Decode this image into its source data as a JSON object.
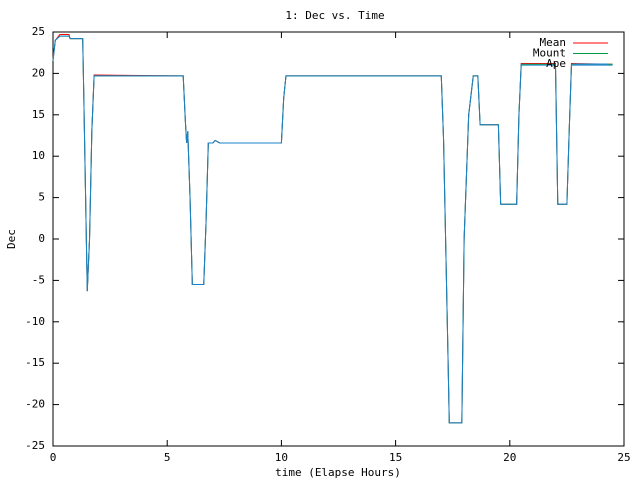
{
  "chart_data": {
    "type": "line",
    "title": "1: Dec vs. Time",
    "x_label": "time (Elapse Hours)",
    "y_label": "Dec",
    "x": [
      0,
      0.1,
      0.3,
      0.7,
      0.75,
      1.3,
      1.35,
      1.5,
      1.6,
      1.7,
      1.8,
      5.7,
      5.8,
      5.85,
      5.9,
      6.0,
      6.1,
      6.6,
      6.7,
      6.8,
      7.0,
      7.1,
      7.3,
      10.0,
      10.1,
      10.2,
      17.0,
      17.1,
      17.3,
      17.35,
      17.9,
      18.0,
      18.2,
      18.4,
      18.6,
      18.7,
      19.5,
      19.6,
      20.3,
      20.4,
      20.5,
      22.0,
      22.1,
      22.5,
      22.6,
      22.7,
      24.5
    ],
    "series": [
      {
        "name": "Mean",
        "color": "#ff0000",
        "values": [
          21.6,
          24.0,
          24.7,
          24.7,
          24.2,
          24.2,
          17,
          -6.3,
          0,
          13,
          19.8,
          19.7,
          14,
          11.6,
          13,
          5,
          -5.5,
          -5.5,
          2,
          11.6,
          11.6,
          11.9,
          11.6,
          11.6,
          17,
          19.7,
          19.7,
          12,
          -15,
          -22.2,
          -22.2,
          0,
          15,
          19.7,
          19.7,
          13.8,
          13.8,
          4.2,
          4.2,
          15,
          21.2,
          21.2,
          4.2,
          4.2,
          13,
          21.2,
          21.1
        ]
      },
      {
        "name": "Mount",
        "color": "#009e4a",
        "values": [
          21.6,
          24.0,
          24.5,
          24.5,
          24.2,
          24.2,
          17,
          -6.3,
          0,
          13,
          19.7,
          19.7,
          14,
          11.6,
          13,
          5,
          -5.5,
          -5.5,
          2,
          11.6,
          11.6,
          11.9,
          11.6,
          11.6,
          17,
          19.7,
          19.7,
          12,
          -15,
          -22.2,
          -22.2,
          0,
          15,
          19.7,
          19.7,
          13.8,
          13.8,
          4.2,
          4.2,
          15,
          21.1,
          21.1,
          4.2,
          4.2,
          13,
          21.1,
          21.1
        ]
      },
      {
        "name": "Ape",
        "color": "#1a82c8",
        "values": [
          21.5,
          24.0,
          24.5,
          24.5,
          24.2,
          24.2,
          17,
          -6.3,
          0,
          13,
          19.7,
          19.7,
          14,
          11.6,
          13,
          5,
          -5.5,
          -5.5,
          2,
          11.6,
          11.6,
          11.9,
          11.6,
          11.6,
          17,
          19.7,
          19.7,
          12,
          -15,
          -22.2,
          -22.2,
          0,
          15,
          19.7,
          19.7,
          13.8,
          13.8,
          4.2,
          4.2,
          15,
          21.0,
          21.0,
          4.2,
          4.2,
          13,
          21.0,
          21.0
        ]
      }
    ],
    "xlim": [
      0,
      25
    ],
    "xticks": [
      0,
      5,
      10,
      15,
      20,
      25
    ],
    "ylim": [
      -25,
      25
    ],
    "yticks": [
      -25,
      -20,
      -15,
      -10,
      -5,
      0,
      5,
      10,
      15,
      20,
      25
    ],
    "grid": false,
    "legend": "top-right"
  }
}
